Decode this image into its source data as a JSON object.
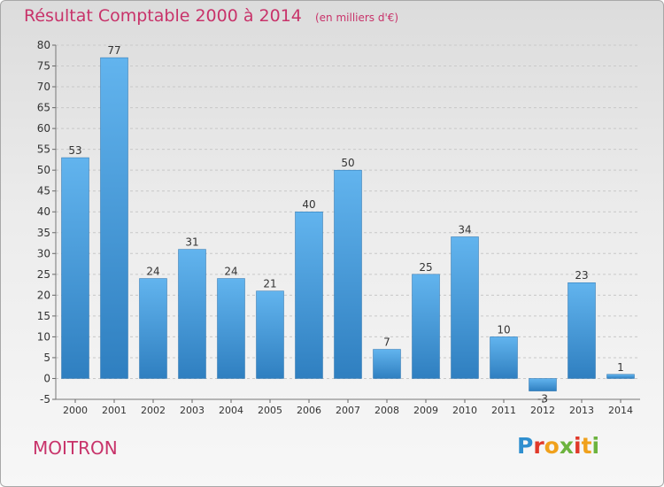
{
  "title": "Résultat Comptable 2000 à 2014",
  "unit_note": "(en milliers d'€)",
  "commune": "MOITRON",
  "logo": {
    "text": "Proxiti",
    "colors": [
      "#2f8fcf",
      "#e0392a",
      "#f0a11c",
      "#6cb33e",
      "#e0392a",
      "#f0a11c",
      "#6cb33e"
    ]
  },
  "colors": {
    "bar_top": "#62b4ee",
    "bar_bottom": "#2f7fc0",
    "title": "#c8336a",
    "grid": "#c8c8c8"
  },
  "chart_data": {
    "type": "bar",
    "categories": [
      "2000",
      "2001",
      "2002",
      "2003",
      "2004",
      "2005",
      "2006",
      "2007",
      "2008",
      "2009",
      "2010",
      "2011",
      "2012",
      "2013",
      "2014"
    ],
    "values": [
      53,
      77,
      24,
      31,
      24,
      21,
      40,
      50,
      7,
      25,
      34,
      10,
      -3,
      23,
      1
    ],
    "data_labels": [
      "53",
      "77",
      "24",
      "31",
      "24",
      "21",
      "40",
      "50",
      "7",
      "25",
      "34",
      "10",
      "-3",
      "23",
      "1"
    ],
    "yticks": [
      -5,
      0,
      5,
      10,
      15,
      20,
      25,
      30,
      35,
      40,
      45,
      50,
      55,
      60,
      65,
      70,
      75,
      80
    ],
    "ylim": [
      -5,
      80
    ],
    "grid": "horizontal-dashed"
  }
}
